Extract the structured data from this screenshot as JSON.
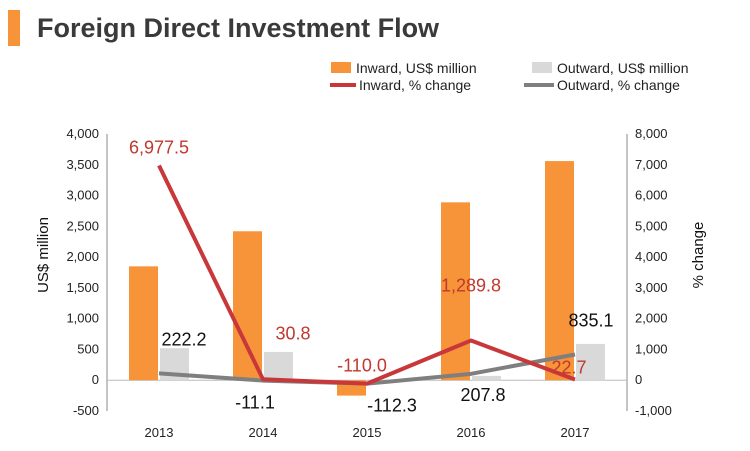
{
  "title": "Foreign Direct Investment Flow",
  "colors": {
    "title_bar": "#f7943a",
    "inward_bar": "#f7943a",
    "outward_bar": "#d9d9d9",
    "inward_line": "#c8383a",
    "outward_line": "#7f7f7f",
    "inward_label": "#c0382f",
    "outward_label": "#111111"
  },
  "legend": {
    "inward_bar": "Inward, US$ million",
    "outward_bar": "Outward, US$ million",
    "inward_line": "Inward, % change",
    "outward_line": "Outward, % change"
  },
  "chart_data": {
    "type": "bar",
    "title": "Foreign Direct Investment Flow",
    "categories": [
      "2013",
      "2014",
      "2015",
      "2016",
      "2017"
    ],
    "ylabel": "US$ million",
    "y2label": "% change",
    "ylim": [
      -500,
      4000
    ],
    "y2lim": [
      -1000,
      8000
    ],
    "y_ticks": [
      "4,000",
      "3,500",
      "3,000",
      "2,500",
      "2,000",
      "1,500",
      "1,000",
      "500",
      "0",
      "-500"
    ],
    "y2_ticks": [
      "8,000",
      "7,000",
      "6,000",
      "5,000",
      "4,000",
      "3,000",
      "2,000",
      "1,000",
      "0",
      "-1,000"
    ],
    "series": [
      {
        "name": "Inward, US$ million",
        "type": "bar",
        "axis": "left",
        "values": [
          1850,
          2420,
          -250,
          2890,
          3560
        ]
      },
      {
        "name": "Outward, US$ million",
        "type": "bar",
        "axis": "left",
        "values": [
          520,
          460,
          -30,
          70,
          590
        ]
      },
      {
        "name": "Inward, % change",
        "type": "line",
        "axis": "right",
        "values": [
          6977.5,
          30.8,
          -110.0,
          1289.8,
          22.7
        ],
        "labels": [
          "6,977.5",
          "30.8",
          "-110.0",
          "1,289.8",
          "22.7"
        ]
      },
      {
        "name": "Outward, % change",
        "type": "line",
        "axis": "right",
        "values": [
          222.2,
          -11.1,
          -112.3,
          207.8,
          835.1
        ],
        "labels": [
          "222.2",
          "-11.1",
          "-112.3",
          "207.8",
          "835.1"
        ]
      }
    ]
  }
}
